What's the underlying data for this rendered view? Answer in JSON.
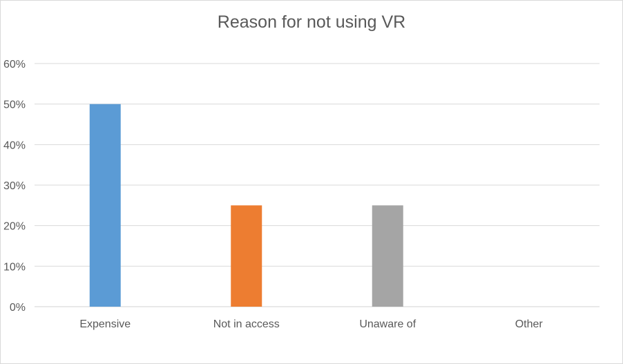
{
  "chart_data": {
    "type": "bar",
    "title": "Reason for not using VR",
    "categories": [
      "Expensive",
      "Not in access",
      "Unaware of",
      "Other"
    ],
    "values": [
      50,
      25,
      25,
      0
    ],
    "colors": [
      "#5b9bd5",
      "#ed7d31",
      "#a5a5a5",
      "#ffc000"
    ],
    "xlabel": "",
    "ylabel": "",
    "ylim": [
      0,
      60
    ],
    "yticks": [
      0,
      10,
      20,
      30,
      40,
      50,
      60
    ],
    "ytick_labels": [
      "0%",
      "10%",
      "20%",
      "30%",
      "40%",
      "50%",
      "60%"
    ],
    "grid": true,
    "legend": "none"
  }
}
